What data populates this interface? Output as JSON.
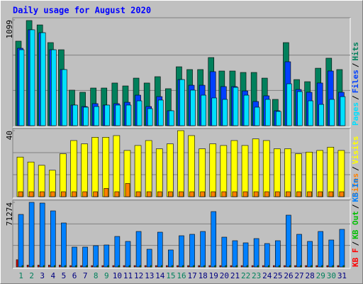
{
  "title": "Daily usage for August 2020",
  "legend_separator": "/",
  "weekday_label_color": "#000080",
  "weekend_label_color": "#00805C",
  "weekends": [
    1,
    2,
    8,
    9,
    15,
    16,
    22,
    23,
    29,
    30
  ],
  "chart_data": [
    {
      "type": "bar",
      "categories": [
        "1",
        "2",
        "3",
        "4",
        "5",
        "6",
        "7",
        "8",
        "9",
        "10",
        "11",
        "12",
        "13",
        "14",
        "15",
        "16",
        "17",
        "18",
        "19",
        "20",
        "21",
        "22",
        "23",
        "24",
        "25",
        "26",
        "27",
        "28",
        "29",
        "30",
        "31"
      ],
      "ylim": [
        0,
        1099
      ],
      "yticks": [
        1099
      ],
      "series": [
        {
          "name": "Hits",
          "color": "#00805C",
          "values": [
            878,
            1092,
            1047,
            863,
            789,
            369,
            347,
            391,
            391,
            443,
            413,
            494,
            443,
            509,
            384,
            612,
            583,
            583,
            708,
            568,
            568,
            553,
            553,
            494,
            273,
            863,
            479,
            457,
            597,
            701,
            583
          ]
        },
        {
          "name": "Files",
          "color": "#0040FF",
          "values": [
            804,
            996,
            966,
            789,
            583,
            214,
            199,
            229,
            214,
            229,
            243,
            317,
            199,
            302,
            155,
            479,
            420,
            420,
            561,
            406,
            406,
            361,
            251,
            310,
            155,
            664,
            376,
            347,
            443,
            568,
            347
          ]
        },
        {
          "name": "Pages",
          "color": "#00E0FF",
          "values": [
            789,
            996,
            966,
            789,
            583,
            214,
            192,
            199,
            214,
            214,
            214,
            258,
            177,
            266,
            155,
            479,
            369,
            317,
            288,
            273,
            398,
            317,
            192,
            273,
            148,
            435,
            354,
            258,
            221,
            273,
            302
          ]
        }
      ]
    },
    {
      "type": "bar",
      "ylim": [
        0,
        40
      ],
      "yticks": [
        40
      ],
      "series": [
        {
          "name": "Visits",
          "color": "#FFFF00",
          "values": [
            24,
            21,
            19,
            16,
            26,
            34,
            32,
            36,
            36,
            37,
            28,
            31,
            34,
            29,
            32,
            40,
            37,
            29,
            32,
            31,
            34,
            31,
            35,
            34,
            29,
            29,
            26,
            27,
            28,
            30,
            28
          ]
        },
        {
          "name": "Sites",
          "color": "#FF8000",
          "values": [
            3,
            3,
            3,
            3,
            3,
            3,
            3,
            3,
            5,
            3,
            8,
            3,
            3,
            3,
            3,
            3,
            3,
            3,
            3,
            3,
            3,
            3,
            3,
            3,
            3,
            3,
            3,
            3,
            3,
            3,
            3
          ]
        }
      ]
    },
    {
      "type": "bar",
      "ylim": [
        0,
        71274
      ],
      "yticks": [
        71274
      ],
      "series": [
        {
          "name": "KB In",
          "color": "#0080FF",
          "values": [
            57959,
            71274,
            70500,
            61876,
            48560,
            21930,
            21930,
            23496,
            24279,
            33680,
            28200,
            39160,
            19580,
            38377,
            18797,
            34463,
            36030,
            39160,
            61093,
            32897,
            28982,
            26632,
            31330,
            25850,
            28982,
            57176,
            36030,
            28200,
            39160,
            29765,
            41510
          ]
        },
        {
          "name": "KB Out",
          "color": "#00C000",
          "values": [
            1500,
            1500,
            1500,
            1500,
            1500,
            1500,
            1500,
            1500,
            1500,
            1500,
            1500,
            1500,
            1500,
            1500,
            1500,
            1500,
            1500,
            1500,
            1500,
            1500,
            1500,
            1500,
            1500,
            1500,
            1500,
            1500,
            1500,
            1500,
            1500,
            1500,
            1500
          ]
        },
        {
          "name": "KB F",
          "color": "#FF0000",
          "values": [
            8000,
            2000,
            2000,
            2000,
            2000,
            1500,
            1500,
            1500,
            1500,
            1500,
            1500,
            1500,
            1500,
            1500,
            1500,
            1500,
            1500,
            1500,
            1500,
            1500,
            1500,
            1500,
            1500,
            1500,
            1500,
            1500,
            1500,
            1500,
            1500,
            1500,
            1500
          ]
        }
      ]
    }
  ]
}
